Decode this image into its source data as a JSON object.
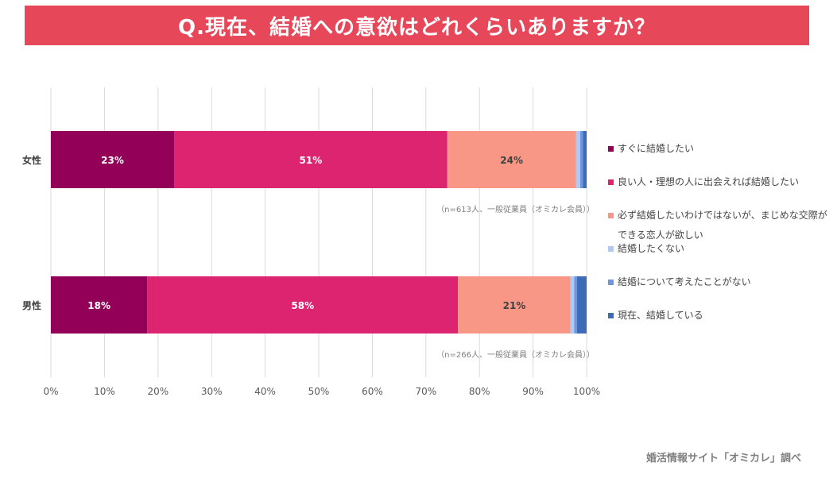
{
  "title": "Q.現在、結婚への意欲はどれくらいありますか？",
  "source": "婚活情報サイト「オミカレ」調べ",
  "chart_data": {
    "type": "bar",
    "orientation": "horizontal",
    "stacked": true,
    "categories": [
      "女性",
      "男性"
    ],
    "notes": [
      "（n=613人、一般従業員（オミカレ会員））",
      "（n=266人、一般従業員（オミカレ会員））"
    ],
    "xlim": [
      0,
      100
    ],
    "xticks": [
      "0%",
      "10%",
      "20%",
      "30%",
      "40%",
      "50%",
      "60%",
      "70%",
      "80%",
      "90%",
      "100%"
    ],
    "grid": true,
    "legend_position": "right",
    "series": [
      {
        "name": "すぐに結婚したい",
        "color": "#930057",
        "values": [
          23,
          18
        ],
        "labels": [
          "23%",
          "18%"
        ]
      },
      {
        "name": "良い人・理想の人に出会えれば結婚したい",
        "color": "#dc2470",
        "values": [
          51,
          58
        ],
        "labels": [
          "51%",
          "58%"
        ]
      },
      {
        "name": "必ず結婚したいわけではないが、まじめな交際ができる恋人が欲しい",
        "color": "#f89786",
        "values": [
          24,
          21
        ],
        "labels": [
          "24%",
          "21%"
        ]
      },
      {
        "name": "結婚したくない",
        "color": "#adc9f5",
        "values": [
          0.8,
          0.7
        ],
        "labels": [
          "",
          ""
        ]
      },
      {
        "name": "結婚について考えたことがない",
        "color": "#6f95de",
        "values": [
          0.5,
          0.5
        ],
        "labels": [
          "",
          ""
        ]
      },
      {
        "name": "現在、結婚している",
        "color": "#3e6bb6",
        "values": [
          0.7,
          1.8
        ],
        "labels": [
          "",
          ""
        ]
      }
    ]
  },
  "legend": [
    {
      "line1": "すぐに結婚したい",
      "line2": ""
    },
    {
      "line1": "良い人・理想の人に出会えれば結婚したい",
      "line2": ""
    },
    {
      "line1": "必ず結婚したいわけではないが、まじめな交際が",
      "line2": "できる恋人が欲しい"
    },
    {
      "line1": "結婚したくない",
      "line2": ""
    },
    {
      "line1": "結婚について考えたことがない",
      "line2": ""
    },
    {
      "line1": "現在、結婚している",
      "line2": ""
    }
  ]
}
